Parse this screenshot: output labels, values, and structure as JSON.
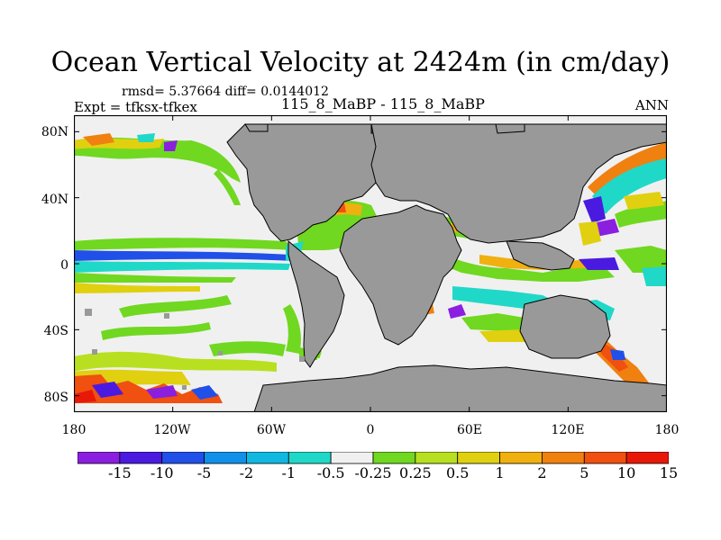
{
  "title": "Ocean Vertical Velocity at 2424m (in cm/day)",
  "stats": "rmsd= 5.37664  diff= 0.0144012",
  "experiment": "Expt = tfksx-tfkex",
  "case_label": "115_8_MaBP - 115_8_MaBP",
  "season": "ANN",
  "lat_ticks": [
    "80N",
    "40N",
    "0",
    "40S",
    "80S"
  ],
  "lat_values": [
    80,
    40,
    0,
    -40,
    -80
  ],
  "lon_ticks": [
    "180",
    "120W",
    "60W",
    "0",
    "60E",
    "120E",
    "180"
  ],
  "lon_values": [
    -180,
    -120,
    -60,
    0,
    60,
    120,
    180
  ],
  "colorbar": {
    "labels": [
      "-15",
      "-10",
      "-5",
      "-2",
      "-1",
      "-0.5",
      "-0.25",
      "0.25",
      "0.5",
      "1",
      "2",
      "5",
      "10",
      "15"
    ],
    "colors": [
      "#8a1fe0",
      "#4a1ae0",
      "#2050e8",
      "#1090e8",
      "#10b8e0",
      "#20d8c8",
      "#f0f0f0",
      "#70d820",
      "#b8e020",
      "#e0d010",
      "#f0b010",
      "#f08010",
      "#f05010",
      "#e81808"
    ]
  },
  "colors": {
    "land": "#999999",
    "ocean_neutral": "#f0f0f0"
  }
}
